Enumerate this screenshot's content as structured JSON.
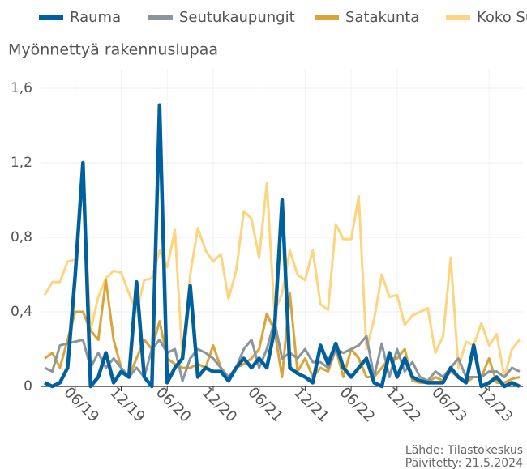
{
  "chart_data": {
    "type": "line",
    "subtitle": "Myönnettyä rakennuslupaa",
    "source": "Lähde: Tilastokeskus",
    "updated": "Päivitetty: 21.5.2024",
    "categories": [
      null,
      null,
      null,
      null,
      "06/19",
      null,
      null,
      null,
      null,
      null,
      "12/19",
      null,
      null,
      null,
      null,
      null,
      "06/20",
      null,
      null,
      null,
      null,
      null,
      "12/20",
      null,
      null,
      null,
      null,
      null,
      "06/21",
      null,
      null,
      null,
      null,
      null,
      "12/21",
      null,
      null,
      null,
      null,
      null,
      "06/22",
      null,
      null,
      null,
      null,
      null,
      "12/22",
      null,
      null,
      null,
      null,
      null,
      "06/23",
      null,
      null,
      null,
      null,
      null,
      "12/23",
      null,
      null,
      null,
      null
    ],
    "ylim": [
      0,
      1.6
    ],
    "yticks": [
      0,
      {
        "value": 0.4,
        "label": "0,4"
      },
      {
        "value": 0.8,
        "label": "0,8"
      },
      {
        "value": 1.2,
        "label": "1,2"
      },
      {
        "value": 1.6,
        "label": "1,6"
      }
    ],
    "grid": true,
    "legend": "top",
    "series": [
      {
        "name": "Rauma",
        "color": "#00609e",
        "values": [
          0.02,
          0.0,
          0.02,
          0.1,
          0.6,
          1.2,
          0.0,
          0.05,
          0.18,
          0.02,
          0.08,
          0.05,
          0.56,
          0.05,
          0.0,
          1.51,
          0.02,
          0.1,
          0.15,
          0.54,
          0.05,
          0.1,
          0.08,
          0.08,
          0.03,
          0.1,
          0.15,
          0.1,
          0.15,
          0.1,
          0.3,
          1.0,
          0.1,
          0.07,
          0.05,
          0.02,
          0.22,
          0.12,
          0.23,
          0.1,
          0.05,
          0.1,
          0.15,
          0.02,
          0.0,
          0.18,
          0.05,
          0.15,
          0.05,
          0.03,
          0.02,
          0.02,
          0.02,
          0.1,
          0.05,
          0.02,
          0.22,
          0.0,
          0.02,
          0.05,
          0.0,
          0.02,
          0.0
        ]
      },
      {
        "name": "Seutukaupungit",
        "color": "#8a959e",
        "values": [
          0.1,
          0.08,
          0.22,
          0.23,
          0.24,
          0.25,
          0.1,
          0.18,
          0.1,
          0.15,
          0.1,
          0.05,
          0.1,
          0.05,
          0.2,
          0.25,
          0.18,
          0.2,
          0.03,
          0.15,
          0.2,
          0.18,
          0.15,
          0.1,
          0.05,
          0.1,
          0.2,
          0.25,
          0.1,
          0.2,
          0.35,
          0.15,
          0.18,
          0.15,
          0.2,
          0.13,
          0.13,
          0.1,
          0.2,
          0.18,
          0.2,
          0.22,
          0.27,
          0.05,
          0.23,
          0.05,
          0.2,
          0.08,
          0.13,
          0.05,
          0.03,
          0.08,
          0.05,
          0.1,
          0.15,
          0.05,
          0.05,
          0.05,
          0.08,
          0.08,
          0.05,
          0.1,
          0.08
        ]
      },
      {
        "name": "Satakunta",
        "color": "#d9a53a",
        "values": [
          0.15,
          0.18,
          0.1,
          0.25,
          0.4,
          0.4,
          0.3,
          0.25,
          0.57,
          0.25,
          0.1,
          0.05,
          0.15,
          0.25,
          0.2,
          0.35,
          0.15,
          0.12,
          0.1,
          0.1,
          0.12,
          0.1,
          0.22,
          0.1,
          0.05,
          0.1,
          0.12,
          0.15,
          0.2,
          0.39,
          0.3,
          0.05,
          0.5,
          0.08,
          0.15,
          0.05,
          0.1,
          0.08,
          0.2,
          0.05,
          0.2,
          0.15,
          0.05,
          0.05,
          0.1,
          0.15,
          0.15,
          0.2,
          0.03,
          0.02,
          0.02,
          0.05,
          0.03,
          0.08,
          0.05,
          0.02,
          0.05,
          0.05,
          0.15,
          0.02,
          0.02,
          0.04,
          0.05
        ]
      },
      {
        "name": "Koko Suomi",
        "color": "#fdd47f",
        "values": [
          0.49,
          0.56,
          0.56,
          0.67,
          0.68,
          1.1,
          0.3,
          0.48,
          0.58,
          0.62,
          0.61,
          0.5,
          0.4,
          0.57,
          0.58,
          0.73,
          0.64,
          0.84,
          0.15,
          0.6,
          0.85,
          0.73,
          0.67,
          0.71,
          0.47,
          0.62,
          0.94,
          0.9,
          0.69,
          1.09,
          0.4,
          0.5,
          0.73,
          0.6,
          0.57,
          0.73,
          0.44,
          0.41,
          0.87,
          0.79,
          0.79,
          1.02,
          0.2,
          0.36,
          0.6,
          0.48,
          0.49,
          0.33,
          0.38,
          0.4,
          0.42,
          0.18,
          0.27,
          0.69,
          0.1,
          0.24,
          0.22,
          0.34,
          0.22,
          0.28,
          0.05,
          0.2,
          0.25
        ]
      }
    ]
  }
}
